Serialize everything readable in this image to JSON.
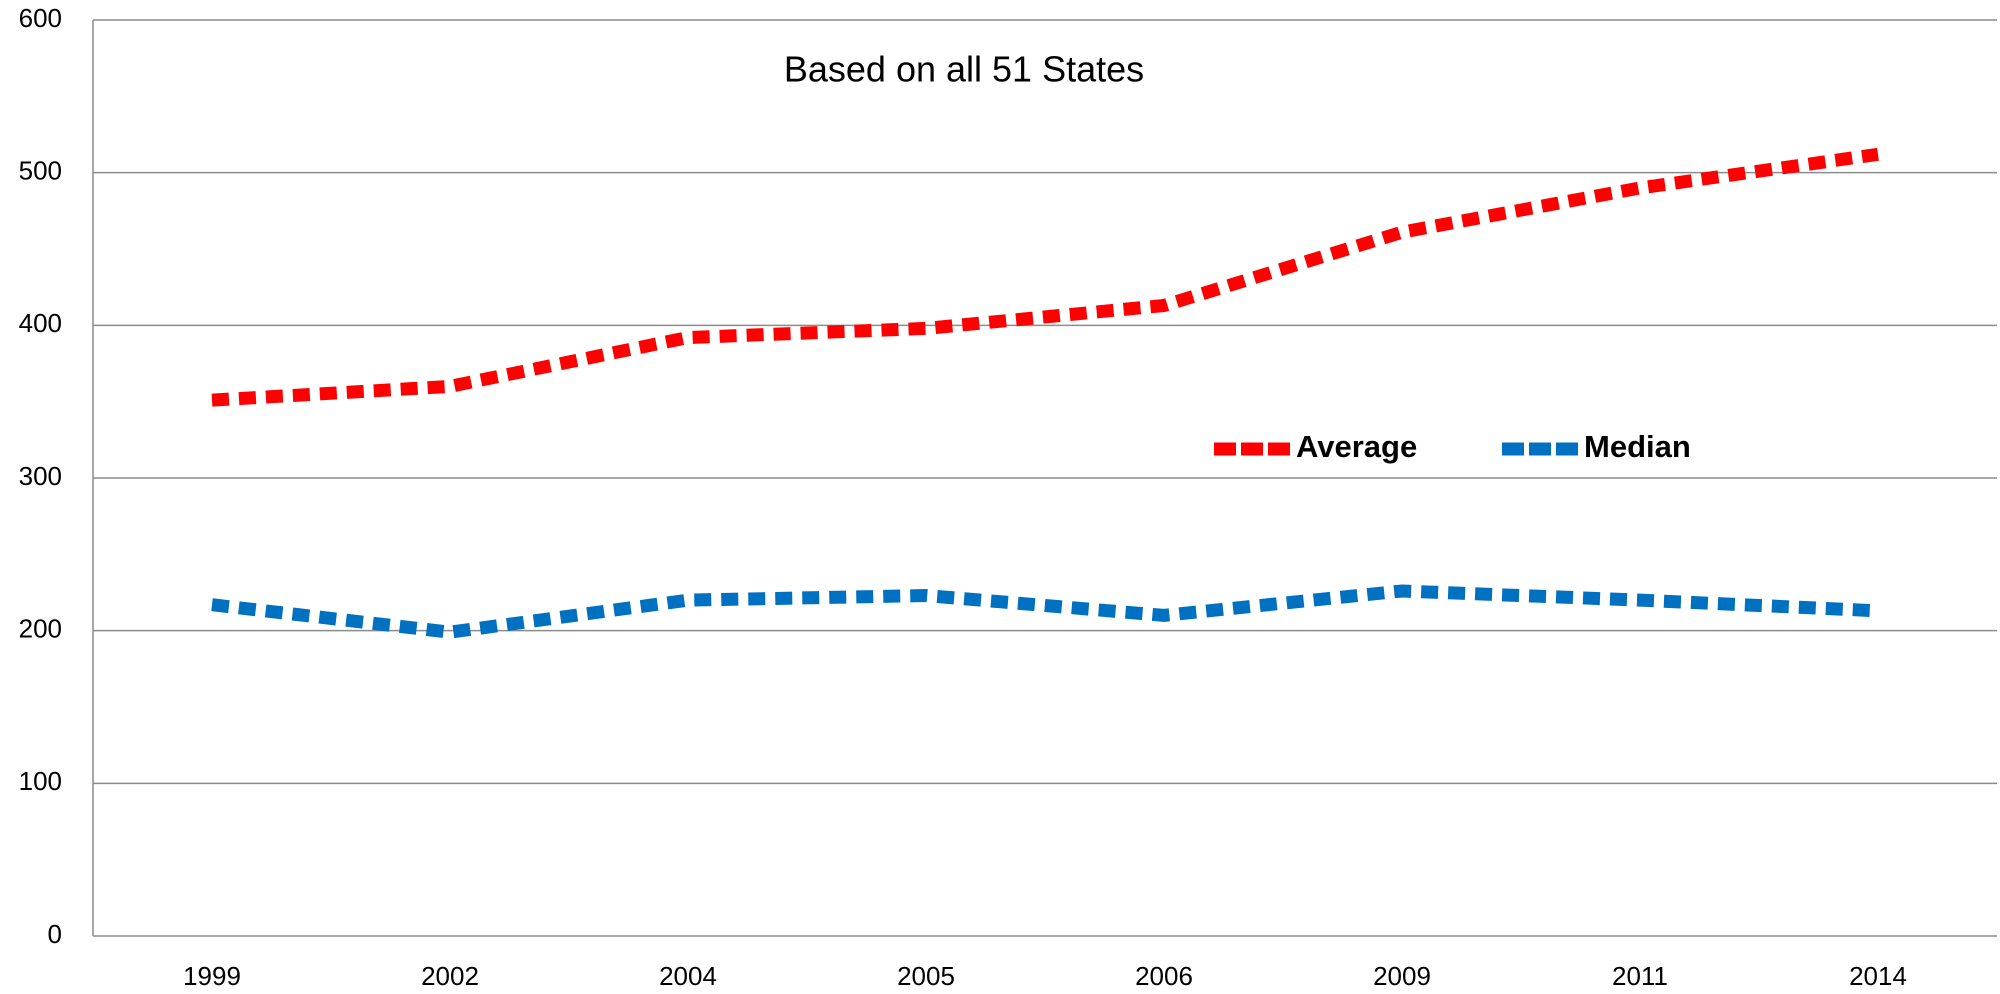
{
  "chart_data": {
    "type": "line",
    "annotation": "Based on all  51 States",
    "categories": [
      "1999",
      "2002",
      "2004",
      "2005",
      "2006",
      "2009",
      "2011",
      "2014"
    ],
    "series": [
      {
        "name": "Average",
        "color": "#ff0000",
        "values": [
          351,
          360,
          392,
          398,
          413,
          461,
          490,
          512
        ]
      },
      {
        "name": "Median",
        "color": "#0070c0",
        "values": [
          217,
          199,
          220,
          223,
          210,
          226,
          220,
          213
        ]
      }
    ],
    "ylim": [
      0,
      600
    ],
    "yticks": [
      0,
      100,
      200,
      300,
      400,
      500,
      600
    ],
    "grid": true,
    "legend": "center"
  }
}
